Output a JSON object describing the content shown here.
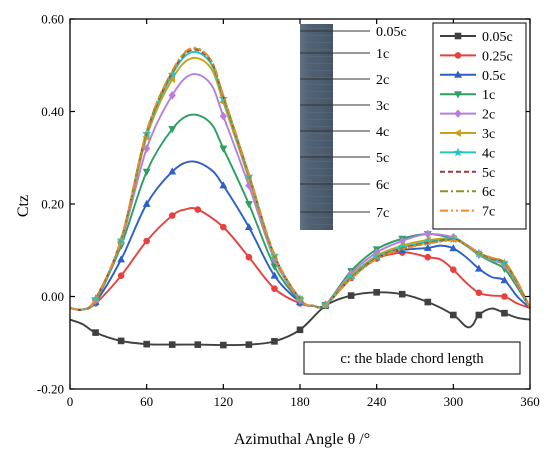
{
  "chart_data": {
    "type": "line",
    "xlabel": "Azimuthal Angle θ /°",
    "ylabel": "Ctz",
    "xlim": [
      0,
      360
    ],
    "ylim": [
      -0.2,
      0.6
    ],
    "x_ticks": [
      0,
      60,
      120,
      180,
      240,
      300,
      360
    ],
    "x_tick_labels": [
      "0",
      "60",
      "120",
      "180",
      "240",
      "300",
      "360"
    ],
    "y_ticks": [
      -0.2,
      0.0,
      0.2,
      0.4,
      0.6
    ],
    "y_tick_labels": [
      "-0.20",
      "0.00",
      "0.20",
      "0.40",
      "0.60"
    ],
    "grid": false,
    "legend_position": "top-right",
    "note": "c: the blade chord length",
    "blade_labels": [
      "0.05c",
      "1c",
      "2c",
      "3c",
      "4c",
      "5c",
      "6c",
      "7c"
    ],
    "series": [
      {
        "name": "0.05c",
        "color": "#404040",
        "dash": "solid",
        "marker": "square",
        "x": [
          0,
          10,
          20,
          40,
          60,
          80,
          100,
          120,
          140,
          160,
          180,
          200,
          220,
          240,
          260,
          280,
          300,
          310,
          315,
          320,
          330,
          340,
          350,
          360
        ],
        "y": [
          -0.05,
          -0.06,
          -0.078,
          -0.096,
          -0.103,
          -0.104,
          -0.104,
          -0.105,
          -0.104,
          -0.097,
          -0.072,
          -0.02,
          0.002,
          0.009,
          0.005,
          -0.012,
          -0.04,
          -0.065,
          -0.062,
          -0.04,
          -0.026,
          -0.036,
          -0.046,
          -0.05
        ]
      },
      {
        "name": "0.25c",
        "color": "#e8403e",
        "dash": "solid",
        "marker": "circle",
        "x": [
          0,
          10,
          20,
          40,
          60,
          80,
          90,
          100,
          120,
          140,
          160,
          180,
          190,
          200,
          220,
          240,
          260,
          270,
          280,
          290,
          300,
          310,
          320,
          330,
          340,
          350,
          360
        ],
        "y": [
          -0.025,
          -0.028,
          -0.015,
          0.045,
          0.12,
          0.175,
          0.188,
          0.188,
          0.15,
          0.085,
          0.017,
          -0.015,
          -0.02,
          -0.018,
          0.04,
          0.082,
          0.095,
          0.092,
          0.085,
          0.08,
          0.058,
          0.03,
          0.008,
          0.002,
          0.0,
          -0.015,
          -0.025
        ]
      },
      {
        "name": "0.5c",
        "color": "#2d5fc5",
        "dash": "solid",
        "marker": "triangle",
        "x": [
          0,
          10,
          20,
          40,
          60,
          80,
          95,
          110,
          120,
          140,
          160,
          180,
          190,
          200,
          220,
          240,
          260,
          280,
          290,
          300,
          310,
          320,
          330,
          340,
          350,
          360
        ],
        "y": [
          -0.025,
          -0.028,
          -0.012,
          0.08,
          0.2,
          0.27,
          0.292,
          0.275,
          0.24,
          0.15,
          0.045,
          -0.012,
          -0.02,
          -0.018,
          0.045,
          0.085,
          0.1,
          0.105,
          0.11,
          0.104,
          0.085,
          0.06,
          0.042,
          0.035,
          0.0,
          -0.025
        ]
      },
      {
        "name": "1c",
        "color": "#2e9e61",
        "dash": "solid",
        "marker": "triangle-down",
        "x": [
          0,
          10,
          20,
          40,
          60,
          80,
          95,
          110,
          120,
          140,
          160,
          180,
          190,
          200,
          220,
          240,
          260,
          280,
          300,
          310,
          320,
          330,
          340,
          350,
          360
        ],
        "y": [
          -0.025,
          -0.028,
          -0.01,
          0.11,
          0.27,
          0.362,
          0.393,
          0.375,
          0.32,
          0.2,
          0.065,
          -0.01,
          -0.02,
          -0.018,
          0.055,
          0.102,
          0.125,
          0.135,
          0.125,
          0.11,
          0.09,
          0.075,
          0.06,
          0.02,
          -0.025
        ]
      },
      {
        "name": "2c",
        "color": "#b57ee0",
        "dash": "solid",
        "marker": "diamond",
        "x": [
          0,
          10,
          20,
          40,
          60,
          80,
          95,
          110,
          120,
          140,
          160,
          180,
          190,
          200,
          220,
          240,
          260,
          280,
          300,
          310,
          320,
          330,
          340,
          350,
          360
        ],
        "y": [
          -0.025,
          -0.028,
          -0.008,
          0.118,
          0.32,
          0.435,
          0.48,
          0.46,
          0.39,
          0.24,
          0.08,
          -0.008,
          -0.02,
          -0.018,
          0.05,
          0.095,
          0.12,
          0.135,
          0.128,
          0.112,
          0.092,
          0.078,
          0.068,
          0.025,
          -0.025
        ]
      },
      {
        "name": "3c",
        "color": "#c9a21c",
        "dash": "solid",
        "marker": "triangle-left",
        "x": [
          0,
          10,
          20,
          40,
          60,
          80,
          95,
          110,
          120,
          140,
          160,
          180,
          190,
          200,
          220,
          240,
          260,
          280,
          300,
          310,
          320,
          330,
          340,
          350,
          360
        ],
        "y": [
          -0.025,
          -0.028,
          -0.006,
          0.12,
          0.345,
          0.47,
          0.515,
          0.495,
          0.42,
          0.255,
          0.085,
          -0.006,
          -0.02,
          -0.018,
          0.045,
          0.088,
          0.11,
          0.122,
          0.125,
          0.112,
          0.092,
          0.08,
          0.07,
          0.028,
          -0.025
        ]
      },
      {
        "name": "4c",
        "color": "#25c4c4",
        "dash": "solid",
        "marker": "star",
        "x": [
          0,
          10,
          20,
          40,
          60,
          80,
          95,
          110,
          120,
          140,
          160,
          180,
          190,
          200,
          220,
          240,
          260,
          280,
          300,
          310,
          320,
          330,
          340,
          350,
          360
        ],
        "y": [
          -0.025,
          -0.028,
          -0.005,
          0.122,
          0.352,
          0.48,
          0.528,
          0.505,
          0.428,
          0.26,
          0.088,
          -0.005,
          -0.02,
          -0.018,
          0.042,
          0.085,
          0.106,
          0.118,
          0.124,
          0.112,
          0.093,
          0.081,
          0.072,
          0.03,
          -0.025
        ]
      },
      {
        "name": "5c",
        "color": "#9a3a3a",
        "dash": "dash",
        "marker": "none",
        "x": [
          0,
          10,
          20,
          40,
          60,
          80,
          95,
          110,
          120,
          140,
          160,
          180,
          190,
          200,
          220,
          240,
          260,
          280,
          300,
          310,
          320,
          330,
          340,
          350,
          360
        ],
        "y": [
          -0.025,
          -0.028,
          -0.005,
          0.123,
          0.355,
          0.485,
          0.533,
          0.51,
          0.432,
          0.263,
          0.089,
          -0.005,
          -0.02,
          -0.018,
          0.04,
          0.083,
          0.104,
          0.116,
          0.123,
          0.112,
          0.094,
          0.082,
          0.073,
          0.031,
          -0.025
        ]
      },
      {
        "name": "6c",
        "color": "#8f8f22",
        "dash": "dashdot",
        "marker": "none",
        "x": [
          0,
          10,
          20,
          40,
          60,
          80,
          95,
          110,
          120,
          140,
          160,
          180,
          190,
          200,
          220,
          240,
          260,
          280,
          300,
          310,
          320,
          330,
          340,
          350,
          360
        ],
        "y": [
          -0.025,
          -0.028,
          -0.005,
          0.124,
          0.357,
          0.487,
          0.535,
          0.512,
          0.434,
          0.264,
          0.09,
          -0.005,
          -0.02,
          -0.018,
          0.039,
          0.082,
          0.103,
          0.115,
          0.122,
          0.112,
          0.094,
          0.083,
          0.074,
          0.032,
          -0.025
        ]
      },
      {
        "name": "7c",
        "color": "#f08a2c",
        "dash": "dashdotdot",
        "marker": "none",
        "x": [
          0,
          10,
          20,
          40,
          60,
          80,
          95,
          110,
          120,
          140,
          160,
          180,
          190,
          200,
          220,
          240,
          260,
          280,
          300,
          310,
          320,
          330,
          340,
          350,
          360
        ],
        "y": [
          -0.025,
          -0.028,
          -0.005,
          0.124,
          0.358,
          0.488,
          0.537,
          0.513,
          0.435,
          0.265,
          0.09,
          -0.005,
          -0.02,
          -0.018,
          0.038,
          0.081,
          0.102,
          0.114,
          0.121,
          0.112,
          0.095,
          0.084,
          0.075,
          0.033,
          -0.025
        ]
      }
    ]
  }
}
